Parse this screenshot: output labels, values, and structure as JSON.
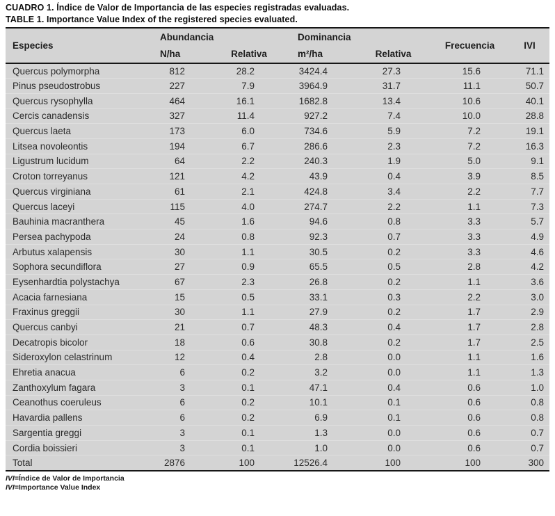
{
  "titles": {
    "spanish": "CUADRO 1. Índice de Valor de Importancia de las especies registradas evaluadas.",
    "english": "TABLE 1. Importance Value Index of the registered species evaluated."
  },
  "table": {
    "headers": {
      "especies": "Especies",
      "abundancia_group": "Abundancia",
      "dominancia_group": "Dominancia",
      "n_ha": "N/ha",
      "relativa_abundancia": "Relativa",
      "m2_ha": "m²/ha",
      "relativa_dominancia": "Relativa",
      "frecuencia": "Frecuencia",
      "ivi": "IVI"
    },
    "rows": [
      [
        "Quercus polymorpha",
        "812",
        "28.2",
        "3424.4",
        "27.3",
        "15.6",
        "71.1"
      ],
      [
        "Pinus pseudostrobus",
        "227",
        "7.9",
        "3964.9",
        "31.7",
        "11.1",
        "50.7"
      ],
      [
        "Quercus rysophylla",
        "464",
        "16.1",
        "1682.8",
        "13.4",
        "10.6",
        "40.1"
      ],
      [
        "Cercis canadensis",
        "327",
        "11.4",
        "927.2",
        "7.4",
        "10.0",
        "28.8"
      ],
      [
        "Quercus laeta",
        "173",
        "6.0",
        "734.6",
        "5.9",
        "7.2",
        "19.1"
      ],
      [
        "Litsea novoleontis",
        "194",
        "6.7",
        "286.6",
        "2.3",
        "7.2",
        "16.3"
      ],
      [
        "Ligustrum lucidum",
        "64",
        "2.2",
        "240.3",
        "1.9",
        "5.0",
        "9.1"
      ],
      [
        "Croton torreyanus",
        "121",
        "4.2",
        "43.9",
        "0.4",
        "3.9",
        "8.5"
      ],
      [
        "Quercus virginiana",
        "61",
        "2.1",
        "424.8",
        "3.4",
        "2.2",
        "7.7"
      ],
      [
        "Quercus laceyi",
        "115",
        "4.0",
        "274.7",
        "2.2",
        "1.1",
        "7.3"
      ],
      [
        "Bauhinia macranthera",
        "45",
        "1.6",
        "94.6",
        "0.8",
        "3.3",
        "5.7"
      ],
      [
        "Persea pachypoda",
        "24",
        "0.8",
        "92.3",
        "0.7",
        "3.3",
        "4.9"
      ],
      [
        "Arbutus xalapensis",
        "30",
        "1.1",
        "30.5",
        "0.2",
        "3.3",
        "4.6"
      ],
      [
        "Sophora secundiflora",
        "27",
        "0.9",
        "65.5",
        "0.5",
        "2.8",
        "4.2"
      ],
      [
        "Eysenhardtia polystachya",
        "67",
        "2.3",
        "26.8",
        "0.2",
        "1.1",
        "3.6"
      ],
      [
        "Acacia farnesiana",
        "15",
        "0.5",
        "33.1",
        "0.3",
        "2.2",
        "3.0"
      ],
      [
        "Fraxinus greggii",
        "30",
        "1.1",
        "27.9",
        "0.2",
        "1.7",
        "2.9"
      ],
      [
        "Quercus canbyi",
        "21",
        "0.7",
        "48.3",
        "0.4",
        "1.7",
        "2.8"
      ],
      [
        "Decatropis bicolor",
        "18",
        "0.6",
        "30.8",
        "0.2",
        "1.7",
        "2.5"
      ],
      [
        "Sideroxylon celastrinum",
        "12",
        "0.4",
        "2.8",
        "0.0",
        "1.1",
        "1.6"
      ],
      [
        "Ehretia anacua",
        "6",
        "0.2",
        "3.2",
        "0.0",
        "1.1",
        "1.3"
      ],
      [
        "Zanthoxylum fagara",
        "3",
        "0.1",
        "47.1",
        "0.4",
        "0.6",
        "1.0"
      ],
      [
        "Ceanothus coeruleus",
        "6",
        "0.2",
        "10.1",
        "0.1",
        "0.6",
        "0.8"
      ],
      [
        "Havardia pallens",
        "6",
        "0.2",
        "6.9",
        "0.1",
        "0.6",
        "0.8"
      ],
      [
        "Sargentia greggi",
        "3",
        "0.1",
        "1.3",
        "0.0",
        "0.6",
        "0.7"
      ],
      [
        "Cordia boissieri",
        "3",
        "0.1",
        "1.0",
        "0.0",
        "0.6",
        "0.7"
      ]
    ],
    "total_row": [
      "Total",
      "2876",
      "100",
      "12526.4",
      "100",
      "100",
      "300"
    ]
  },
  "footnotes": [
    {
      "abbr": "IVI",
      "text": "=Índice de Valor de Importancia"
    },
    {
      "abbr": "IVI",
      "text": "=Importance Value Index"
    }
  ],
  "colors": {
    "table_background": "#d4d4d4",
    "rule_color": "#161616",
    "text_color": "#2b2b2b"
  }
}
